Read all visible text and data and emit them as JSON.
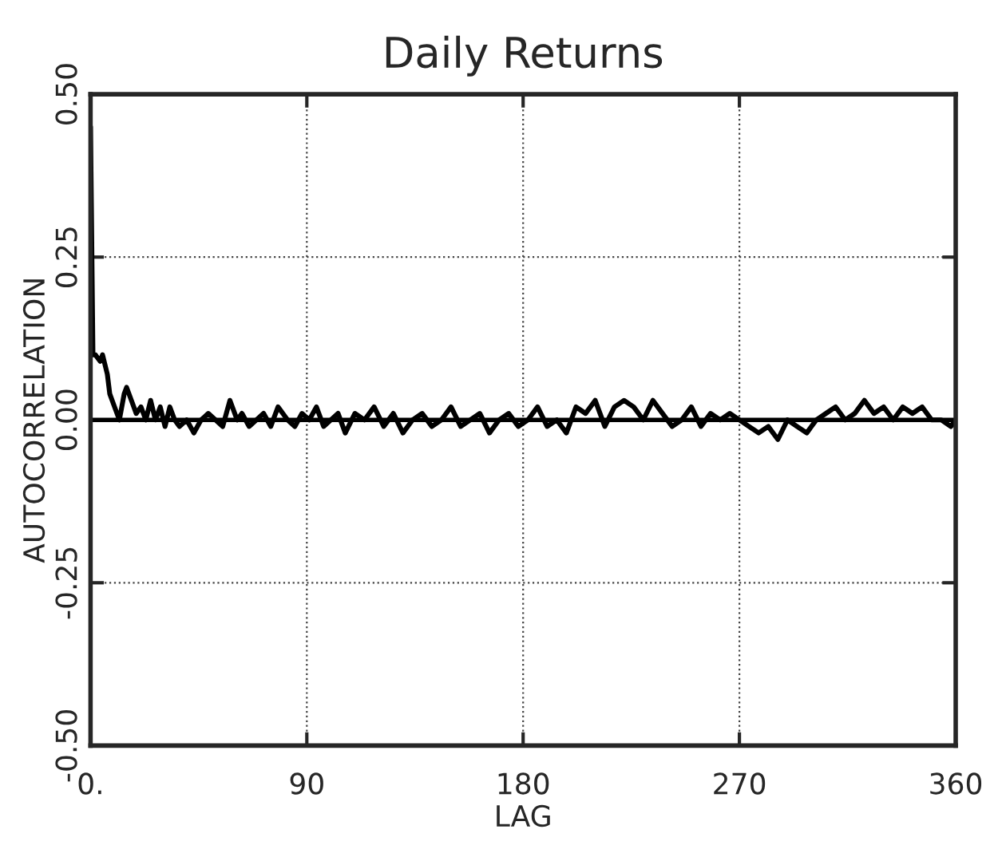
{
  "chart_data": {
    "type": "line",
    "title": "Daily Returns",
    "xlabel": "LAG",
    "ylabel": "AUTOCORRELATION",
    "xlim": [
      0,
      360
    ],
    "xticks": [
      {
        "value": 0,
        "label": "0."
      },
      90,
      180,
      270,
      360
    ],
    "ylim": [
      -0.5,
      0.5
    ],
    "yticks": [
      {
        "value": -0.5,
        "label": "-0.50"
      },
      {
        "value": -0.25,
        "label": "-0.25"
      },
      {
        "value": 0,
        "label": "0.00"
      },
      {
        "value": 0.25,
        "label": "0.25"
      },
      {
        "value": 0.5,
        "label": "0.50"
      }
    ],
    "grid": true,
    "line_style": "solid",
    "marker": "none",
    "ref_lines": [
      {
        "axis": "y",
        "value": 0,
        "color": "#000000"
      }
    ],
    "series": [
      {
        "color": "#000000",
        "x": [
          0,
          1,
          2,
          4,
          5,
          7,
          8,
          10,
          12,
          14,
          15,
          17,
          19,
          21,
          23,
          25,
          27,
          29,
          31,
          33,
          35,
          37,
          40,
          43,
          46,
          49,
          52,
          55,
          58,
          61,
          63,
          66,
          69,
          72,
          75,
          78,
          82,
          85,
          88,
          91,
          94,
          97,
          100,
          103,
          106,
          110,
          114,
          118,
          122,
          126,
          130,
          134,
          138,
          142,
          146,
          150,
          154,
          158,
          162,
          166,
          170,
          174,
          178,
          182,
          186,
          190,
          194,
          198,
          202,
          206,
          210,
          214,
          218,
          222,
          226,
          230,
          234,
          238,
          242,
          246,
          250,
          254,
          258,
          262,
          266,
          270,
          274,
          278,
          282,
          286,
          290,
          294,
          298,
          302,
          306,
          310,
          314,
          318,
          322,
          326,
          330,
          334,
          338,
          342,
          346,
          350,
          354,
          358,
          360
        ],
        "values": [
          0.45,
          0.1,
          0.1,
          0.09,
          0.1,
          0.07,
          0.04,
          0.02,
          0.0,
          0.04,
          0.05,
          0.03,
          0.01,
          0.02,
          0.0,
          0.03,
          0.0,
          0.02,
          -0.01,
          0.02,
          0.0,
          -0.01,
          0.0,
          -0.02,
          0.0,
          0.01,
          0.0,
          -0.01,
          0.03,
          0.0,
          0.01,
          -0.01,
          0.0,
          0.01,
          -0.01,
          0.02,
          0.0,
          -0.01,
          0.01,
          0.0,
          0.02,
          -0.01,
          0.0,
          0.01,
          -0.02,
          0.01,
          0.0,
          0.02,
          -0.01,
          0.01,
          -0.02,
          0.0,
          0.01,
          -0.01,
          0.0,
          0.02,
          -0.01,
          0.0,
          0.01,
          -0.02,
          0.0,
          0.01,
          -0.01,
          0.0,
          0.02,
          -0.01,
          0.0,
          -0.02,
          0.02,
          0.01,
          0.03,
          -0.01,
          0.02,
          0.03,
          0.02,
          0.0,
          0.03,
          0.01,
          -0.01,
          0.0,
          0.02,
          -0.01,
          0.01,
          0.0,
          0.01,
          0.0,
          -0.01,
          -0.02,
          -0.01,
          -0.03,
          0.0,
          -0.01,
          -0.02,
          0.0,
          0.01,
          0.02,
          0.0,
          0.01,
          0.03,
          0.01,
          0.02,
          0.0,
          0.02,
          0.01,
          0.02,
          0.0,
          0.0,
          -0.01,
          0.0
        ]
      }
    ]
  }
}
